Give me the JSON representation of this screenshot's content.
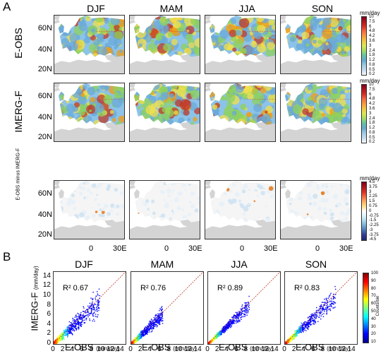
{
  "panel_a": {
    "label": "A",
    "seasons": [
      "DJF",
      "MAM",
      "JJA",
      "SON"
    ],
    "rows": [
      {
        "label": "E-OBS",
        "type": "precip"
      },
      {
        "label": "IMERG-F",
        "type": "precip"
      },
      {
        "label": "E-OBS minus IMERG-F",
        "type": "diff"
      }
    ],
    "lat_ticks": [
      "60N",
      "40N",
      "20N"
    ],
    "lon_ticks": [
      "0",
      "30E"
    ],
    "colorbar_unit": "mm/day",
    "precip_colorbar_ticks": [
      "10",
      "7.5",
      "6",
      "4.8",
      "4.2",
      "3.6",
      "3",
      "2.4",
      "1.8",
      "1.2",
      "0.8",
      "0.5",
      "0.2"
    ],
    "diff_colorbar_ticks": [
      "4.5",
      "3.75",
      "3",
      "2.25",
      "1.5",
      "0.75",
      "0",
      "-0.75",
      "-1.5",
      "-2.25",
      "-3",
      "-3.75",
      "-4.5"
    ],
    "colors": {
      "high": "#a50026",
      "mid": "#7fc84a",
      "low": "#6aa9d9",
      "land": "#d4d4d4",
      "sea": "#ffffff"
    }
  },
  "panel_b": {
    "label": "B",
    "ylabel": "IMERG-F",
    "ylabel_unit": "(mm/day)",
    "xlabel": "E-OBS",
    "xlabel_unit": "(mm/day)",
    "ticks": [
      "0",
      "2",
      "4",
      "6",
      "8",
      "10",
      "12",
      "14"
    ],
    "colorbar_label": "Counts/bin",
    "colorbar_ticks": [
      "100",
      "90",
      "80",
      "70",
      "60",
      "50",
      "40",
      "30",
      "20",
      "10"
    ]
  },
  "chart_data": [
    {
      "type": "scatter",
      "title": "DJF",
      "r2_label": "R² 0.67",
      "r2": 0.67,
      "xlabel": "E-OBS (mm/day)",
      "ylabel": "IMERG-F (mm/day)",
      "xlim": [
        0,
        15
      ],
      "ylim": [
        0,
        15
      ],
      "spread": 0.3,
      "extent": 9.5
    },
    {
      "type": "scatter",
      "title": "MAM",
      "r2_label": "R² 0.76",
      "r2": 0.76,
      "xlabel": "E-OBS (mm/day)",
      "ylabel": "IMERG-F (mm/day)",
      "xlim": [
        0,
        15
      ],
      "ylim": [
        0,
        15
      ],
      "spread": 0.25,
      "extent": 6.5
    },
    {
      "type": "scatter",
      "title": "JJA",
      "r2_label": "R² 0.89",
      "r2": 0.89,
      "xlabel": "E-OBS (mm/day)",
      "ylabel": "IMERG-F (mm/day)",
      "xlim": [
        0,
        15
      ],
      "ylim": [
        0,
        15
      ],
      "spread": 0.17,
      "extent": 8.5
    },
    {
      "type": "scatter",
      "title": "SON",
      "r2_label": "R² 0.83",
      "r2": 0.83,
      "xlabel": "E-OBS (mm/day)",
      "ylabel": "IMERG-F (mm/day)",
      "xlim": [
        0,
        15
      ],
      "ylim": [
        0,
        15
      ],
      "spread": 0.22,
      "extent": 10.5
    }
  ]
}
